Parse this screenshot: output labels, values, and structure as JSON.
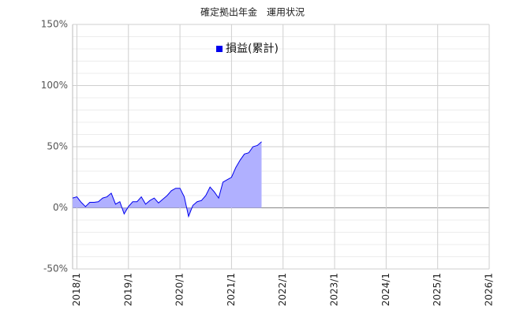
{
  "chart_data": {
    "type": "area",
    "title": "確定拠出年金　運用状況",
    "x": [
      "2017/12",
      "2018/1",
      "2018/2",
      "2018/3",
      "2018/4",
      "2018/5",
      "2018/6",
      "2018/7",
      "2018/8",
      "2018/9",
      "2018/10",
      "2018/11",
      "2018/12",
      "2019/1",
      "2019/2",
      "2019/3",
      "2019/4",
      "2019/5",
      "2019/6",
      "2019/7",
      "2019/8",
      "2019/9",
      "2019/10",
      "2019/11",
      "2019/12",
      "2020/1",
      "2020/2",
      "2020/3",
      "2020/4",
      "2020/5",
      "2020/6",
      "2020/7",
      "2020/8",
      "2020/9",
      "2020/10",
      "2020/11",
      "2020/12",
      "2021/1",
      "2021/2",
      "2021/3",
      "2021/4",
      "2021/5",
      "2021/6",
      "2021/7",
      "2021/8"
    ],
    "series": [
      {
        "name": "損益(累計)",
        "color": "#0000ee",
        "fill": "#b0b0ff",
        "values": [
          8,
          9,
          4.5,
          1,
          4.5,
          4.5,
          5,
          8,
          9,
          12,
          3,
          5,
          -5,
          1,
          5,
          5,
          9,
          3,
          6,
          8,
          4,
          7,
          10,
          14,
          16,
          16,
          9,
          -7,
          2,
          5,
          6,
          10,
          17,
          13,
          8,
          21,
          23,
          25,
          33,
          39,
          44,
          45,
          50,
          51,
          54
        ]
      }
    ],
    "xlim": [
      "2017/12",
      "2026/1"
    ],
    "xticks": [
      "2018/1",
      "2019/1",
      "2020/1",
      "2021/1",
      "2022/1",
      "2023/1",
      "2024/1",
      "2025/1",
      "2026/1"
    ],
    "ylim": [
      -50,
      150
    ],
    "yticks": [
      {
        "value": -50,
        "label": "-50%"
      },
      {
        "value": 0,
        "label": "0%"
      },
      {
        "value": 50,
        "label": "50%"
      },
      {
        "value": 100,
        "label": "100%"
      },
      {
        "value": 150,
        "label": "150%"
      }
    ],
    "yminorticks": [
      -40,
      -30,
      -20,
      -10,
      10,
      20,
      30,
      40,
      60,
      70,
      80,
      90,
      110,
      120,
      130,
      140
    ],
    "grid": true,
    "legend": "top"
  }
}
